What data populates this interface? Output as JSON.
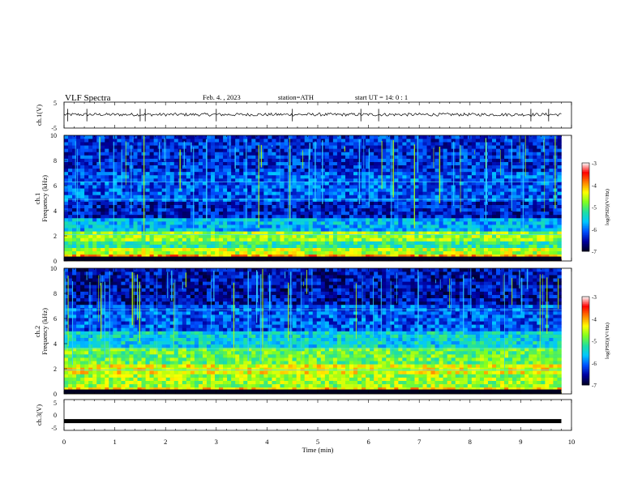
{
  "header": {
    "title": "VLF  Spectra",
    "date": "Feb. 4.  , 2023",
    "station": "station=ATH",
    "start": "start  UT  =    14: 0   : 1"
  },
  "chart_data": [
    {
      "type": "line",
      "name": "ch1-waveform",
      "ylabel": "ch.1(V)",
      "ylim": [
        -5,
        5
      ],
      "yticks": [
        "5",
        "-5"
      ],
      "xlim": [
        0,
        10
      ],
      "x_end": 9.8,
      "baseline": 0.2,
      "noise_amplitude": 0.6,
      "spike_x": [
        0.07,
        0.45,
        1.5,
        1.6,
        3.0,
        4.5,
        5.85,
        6.2,
        9.2,
        9.55
      ]
    },
    {
      "type": "heatmap",
      "name": "ch1-spectrogram",
      "ylabel": "ch.1\nFrequency  (kHz)",
      "ylim": [
        0,
        10
      ],
      "yticks": [
        "0",
        "2",
        "4",
        "6",
        "8",
        "10"
      ],
      "xlim": [
        0,
        10
      ],
      "x_end": 9.8,
      "colorbar": {
        "label": "log(PSD)(V²/Hz)",
        "range": [
          -7,
          -3
        ],
        "ticks": [
          "-3",
          "-4",
          "-5",
          "-6",
          "-7"
        ]
      },
      "band_levels": [
        {
          "f": [
            0,
            0.5
          ],
          "level": -4.0
        },
        {
          "f": [
            0.5,
            1.0
          ],
          "level": -4.6
        },
        {
          "f": [
            1.0,
            1.6
          ],
          "level": -5.2
        },
        {
          "f": [
            1.6,
            2.3
          ],
          "level": -4.7
        },
        {
          "f": [
            2.3,
            3.5
          ],
          "level": -5.7
        },
        {
          "f": [
            3.5,
            4.8
          ],
          "level": -6.4
        },
        {
          "f": [
            4.8,
            7.0
          ],
          "level": -6.1
        },
        {
          "f": [
            7.0,
            10.0
          ],
          "level": -6.3
        }
      ],
      "tone_lines_khz": [
        2.1,
        4.9,
        6.3
      ]
    },
    {
      "type": "heatmap",
      "name": "ch2-spectrogram",
      "ylabel": "ch.2\nFrequency  (kHz)",
      "ylim": [
        0,
        10
      ],
      "yticks": [
        "0",
        "2",
        "4",
        "6",
        "8",
        "10"
      ],
      "xlim": [
        0,
        10
      ],
      "x_end": 9.8,
      "colorbar": {
        "label": "log(PSD)(V²/Hz)",
        "range": [
          -7,
          -3
        ],
        "ticks": [
          "-3",
          "-4",
          "-5",
          "-6",
          "-7"
        ]
      },
      "band_levels": [
        {
          "f": [
            0,
            0.6
          ],
          "level": -4.2
        },
        {
          "f": [
            0.6,
            1.5
          ],
          "level": -4.7
        },
        {
          "f": [
            1.5,
            2.4
          ],
          "level": -4.4
        },
        {
          "f": [
            2.4,
            3.6
          ],
          "level": -4.9
        },
        {
          "f": [
            3.6,
            5.0
          ],
          "level": -5.5
        },
        {
          "f": [
            5.0,
            7.0
          ],
          "level": -6.1
        },
        {
          "f": [
            7.0,
            10.0
          ],
          "level": -6.5
        }
      ],
      "tone_lines_khz": [
        1.9,
        3.6,
        6.7
      ]
    },
    {
      "type": "line",
      "name": "ch3-waveform",
      "ylabel": "ch.3(V)",
      "ylim": [
        -5,
        5
      ],
      "yticks": [
        "5",
        "0",
        "-5"
      ],
      "xlim": [
        0,
        10
      ],
      "x_end": 9.8,
      "value": -2,
      "xlabel": "Time  (min)",
      "xticks": [
        "0",
        "1",
        "2",
        "3",
        "4",
        "5",
        "6",
        "7",
        "8",
        "9",
        "10"
      ]
    }
  ],
  "colors": {
    "black": "#000000",
    "colormap": [
      "#000020",
      "#0000a0",
      "#0050ff",
      "#00c8ff",
      "#20e0a0",
      "#80ff20",
      "#ffff00",
      "#ff8000",
      "#ff0000",
      "#ffffff"
    ],
    "sferic": "#b8ff00"
  }
}
